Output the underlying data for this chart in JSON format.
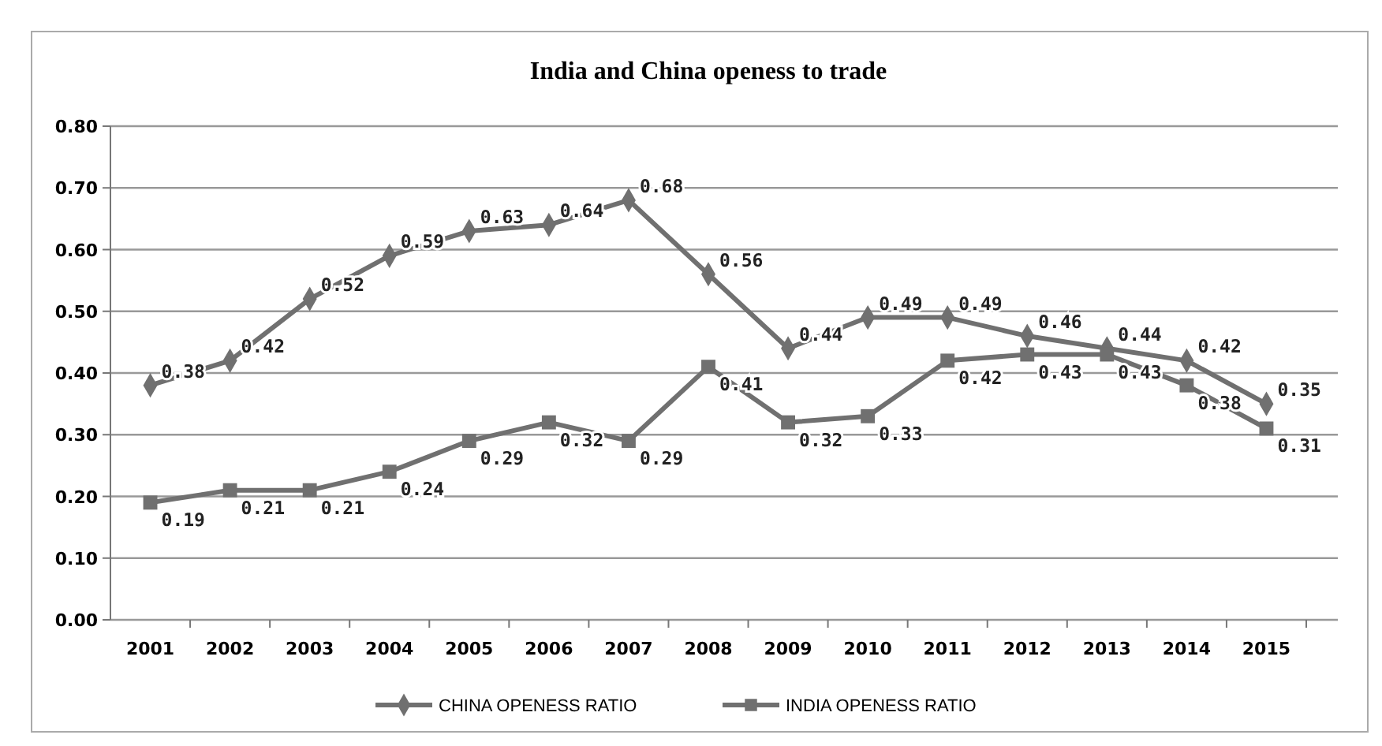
{
  "chart_data": {
    "type": "line",
    "title": "India and China openess to trade",
    "categories": [
      "2001",
      "2002",
      "2003",
      "2004",
      "2005",
      "2006",
      "2007",
      "2008",
      "2009",
      "2010",
      "2011",
      "2012",
      "2013",
      "2014",
      "2015"
    ],
    "series": [
      {
        "name": "CHINA OPENESS RATIO",
        "color": "#707070",
        "marker": "diamond",
        "values": [
          0.38,
          0.42,
          0.52,
          0.59,
          0.63,
          0.64,
          0.68,
          0.56,
          0.44,
          0.49,
          0.49,
          0.46,
          0.44,
          0.42,
          0.35
        ]
      },
      {
        "name": "INDIA OPENESS RATIO",
        "color": "#707070",
        "marker": "square",
        "values": [
          0.19,
          0.21,
          0.21,
          0.24,
          0.29,
          0.32,
          0.29,
          0.41,
          0.32,
          0.33,
          0.42,
          0.43,
          0.43,
          0.38,
          0.31
        ]
      }
    ],
    "ylim": [
      0,
      0.8
    ],
    "yticks": [
      {
        "value": 0,
        "label": "0.00"
      },
      {
        "value": 0.1,
        "label": "0.10"
      },
      {
        "value": 0.2,
        "label": "0.20"
      },
      {
        "value": 0.3,
        "label": "0.30"
      },
      {
        "value": 0.4,
        "label": "0.40"
      },
      {
        "value": 0.5,
        "label": "0.50"
      },
      {
        "value": 0.6,
        "label": "0.60"
      },
      {
        "value": 0.7,
        "label": "0.70"
      },
      {
        "value": 0.8,
        "label": "0.80"
      }
    ],
    "grid": "y",
    "legend": "bottom",
    "data_labels": true
  }
}
